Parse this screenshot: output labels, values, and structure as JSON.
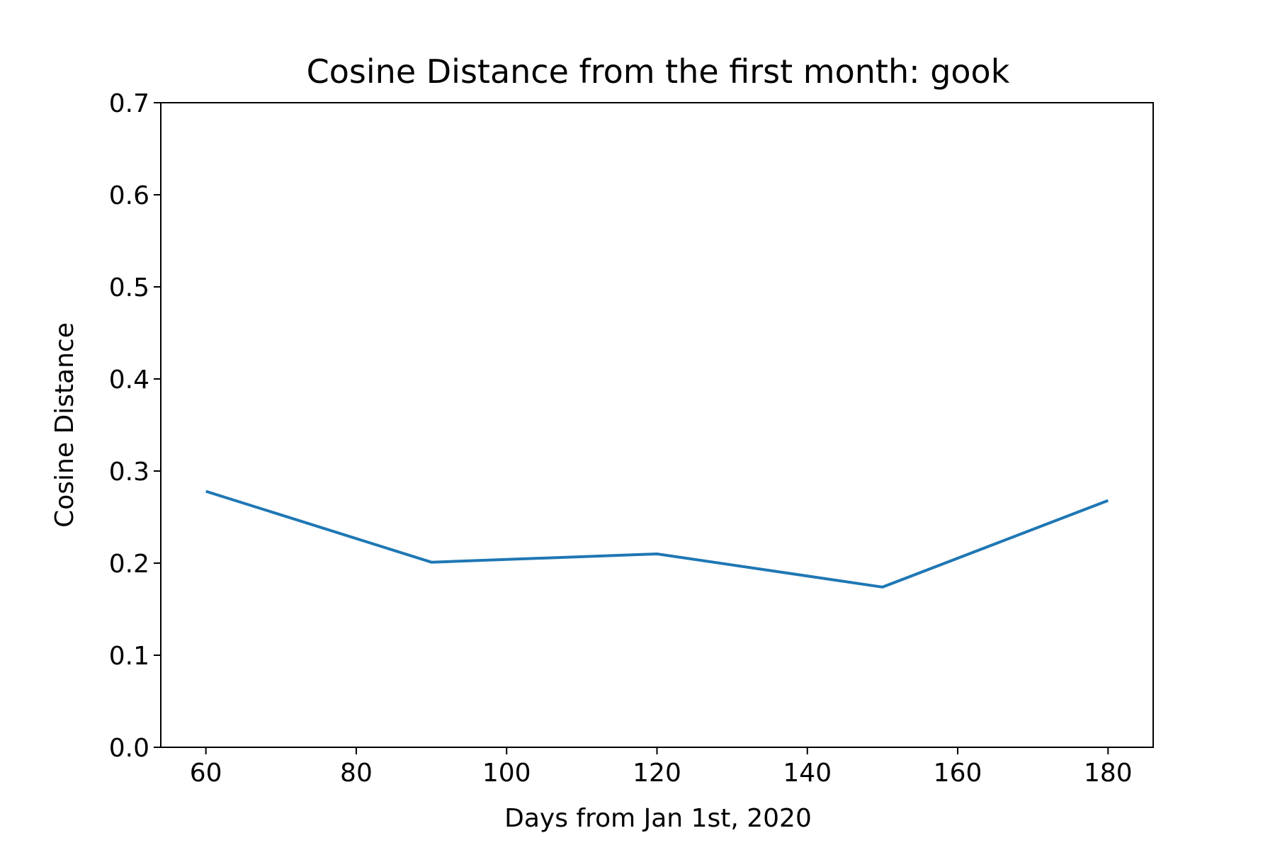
{
  "chart_data": {
    "type": "line",
    "title": "Cosine Distance from the first month: gook",
    "xlabel": "Days from Jan 1st, 2020",
    "ylabel": "Cosine Distance",
    "xlim": [
      54,
      186
    ],
    "ylim": [
      0.0,
      0.7
    ],
    "x_ticks": [
      60,
      80,
      100,
      120,
      140,
      160,
      180
    ],
    "x_tick_labels": [
      "60",
      "80",
      "100",
      "120",
      "140",
      "160",
      "180"
    ],
    "y_ticks": [
      0.0,
      0.1,
      0.2,
      0.3,
      0.4,
      0.5,
      0.6,
      0.7
    ],
    "y_tick_labels": [
      "0.0",
      "0.1",
      "0.2",
      "0.3",
      "0.4",
      "0.5",
      "0.6",
      "0.7"
    ],
    "grid": false,
    "series": [
      {
        "color": "#1f77b4",
        "x": [
          60,
          90,
          120,
          150,
          180
        ],
        "y": [
          0.278,
          0.201,
          0.21,
          0.174,
          0.268
        ]
      }
    ]
  }
}
